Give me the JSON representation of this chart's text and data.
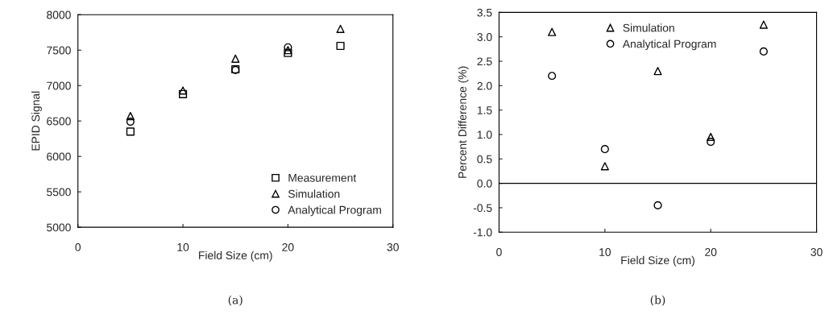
{
  "chart_data": [
    {
      "type": "scatter",
      "xlabel": "Field Size (cm)",
      "ylabel": "EPID Signal",
      "x": [
        5,
        10,
        15,
        20,
        25
      ],
      "xlim": [
        0,
        30
      ],
      "xticks": [
        0,
        10,
        20,
        30
      ],
      "ylim": [
        5000,
        8000
      ],
      "yticks": [
        5000,
        5500,
        6000,
        6500,
        7000,
        7500,
        8000
      ],
      "grid": false,
      "legend": "bottom right",
      "series": [
        {
          "name": "Measurement",
          "color": "#000000",
          "marker": "square",
          "values": [
            6350,
            6880,
            7230,
            7460,
            7560
          ]
        },
        {
          "name": "Simulation",
          "color": "#000000",
          "marker": "triangle",
          "values": [
            6570,
            6930,
            7380,
            7500,
            7800
          ]
        },
        {
          "name": "Analytical Program",
          "color": "#000000",
          "marker": "circle",
          "values": [
            6490,
            null,
            7220,
            7540,
            null
          ]
        }
      ],
      "annotations": [
        "(a)"
      ]
    },
    {
      "type": "scatter",
      "xlabel": "Field Size (cm)",
      "ylabel": "Percent Difference (%)",
      "x": [
        5,
        10,
        15,
        20,
        25
      ],
      "xlim": [
        0,
        30
      ],
      "xticks": [
        0,
        10,
        20,
        30
      ],
      "ylim": [
        -1.0,
        3.5
      ],
      "yticks": [
        {
          "value": -1.0,
          "label": "-1.0"
        },
        {
          "value": -0.5,
          "label": "-0.5"
        },
        {
          "value": 0,
          "label": "0.0"
        },
        {
          "value": 0.5,
          "label": "0.5"
        },
        {
          "value": 1.0,
          "label": "1.0"
        },
        {
          "value": 1.5,
          "label": "1.5"
        },
        {
          "value": 2.0,
          "label": "2.0"
        },
        {
          "value": 2.5,
          "label": "2.5"
        },
        {
          "value": 3.0,
          "label": "3.0"
        },
        {
          "value": 3.5,
          "label": "3.5"
        }
      ],
      "grid": false,
      "legend": "top",
      "ref_lines": [
        {
          "axis": "y",
          "value": 0,
          "color": "#000000",
          "line_style": "solid"
        }
      ],
      "series": [
        {
          "name": "Simulation",
          "color": "#000000",
          "marker": "triangle",
          "values": [
            3.1,
            0.35,
            2.3,
            0.95,
            3.25
          ]
        },
        {
          "name": "Analytical Program",
          "color": "#000000",
          "marker": "circle",
          "values": [
            2.2,
            0.7,
            -0.45,
            0.85,
            2.7
          ]
        }
      ],
      "annotations": [
        "(b)"
      ]
    }
  ]
}
